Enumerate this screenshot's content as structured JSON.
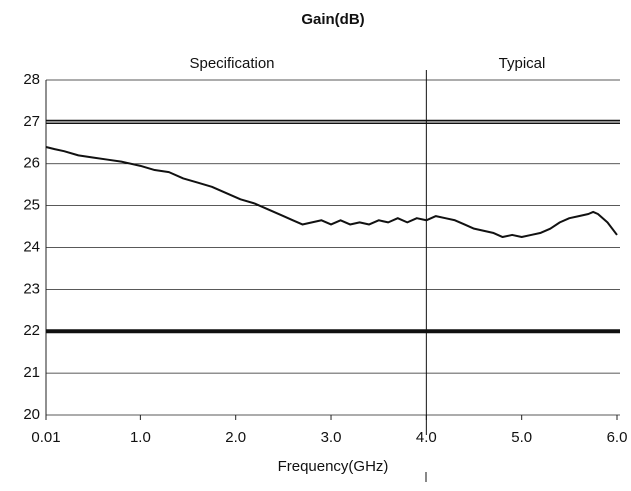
{
  "chart_data": {
    "type": "line",
    "title": "Gain(dB)",
    "x_label": "Frequency(GHz)",
    "annotations": [
      "Specification",
      "Typical"
    ],
    "x": [
      0.01,
      0.1,
      0.2,
      0.35,
      0.5,
      0.65,
      0.8,
      1.0,
      1.15,
      1.3,
      1.45,
      1.6,
      1.75,
      1.9,
      2.05,
      2.2,
      2.35,
      2.5,
      2.6,
      2.7,
      2.8,
      2.9,
      3.0,
      3.1,
      3.2,
      3.3,
      3.4,
      3.5,
      3.6,
      3.7,
      3.8,
      3.9,
      4.0,
      4.1,
      4.2,
      4.3,
      4.4,
      4.5,
      4.6,
      4.7,
      4.8,
      4.9,
      5.0,
      5.1,
      5.2,
      5.3,
      5.4,
      5.5,
      5.6,
      5.7,
      5.75,
      5.8,
      5.9,
      6.0
    ],
    "values": [
      26.4,
      26.35,
      26.3,
      26.2,
      26.15,
      26.1,
      26.05,
      25.95,
      25.85,
      25.8,
      25.65,
      25.55,
      25.45,
      25.3,
      25.15,
      25.05,
      24.9,
      24.75,
      24.65,
      24.55,
      24.6,
      24.65,
      24.55,
      24.65,
      24.55,
      24.6,
      24.55,
      24.65,
      24.6,
      24.7,
      24.6,
      24.7,
      24.65,
      24.75,
      24.7,
      24.65,
      24.55,
      24.45,
      24.4,
      24.35,
      24.25,
      24.3,
      24.25,
      24.3,
      24.35,
      24.45,
      24.6,
      24.7,
      24.75,
      24.8,
      24.85,
      24.8,
      24.6,
      24.3
    ],
    "color": "#111111",
    "hlines": [
      27,
      22
    ],
    "vline": 4,
    "xlim": [
      0.01,
      6
    ],
    "xticks": [
      0.01,
      {
        "value": 1,
        "label": "1.0"
      },
      {
        "value": 2,
        "label": "2.0"
      },
      {
        "value": 3,
        "label": "3.0"
      },
      {
        "value": 4,
        "label": "4.0"
      },
      {
        "value": 5,
        "label": "5.0"
      },
      {
        "value": 6,
        "label": "6.0"
      }
    ],
    "ylim": [
      20,
      28
    ],
    "yticks": [
      20,
      21,
      22,
      23,
      24,
      25,
      26,
      27,
      28
    ],
    "grid": true
  }
}
